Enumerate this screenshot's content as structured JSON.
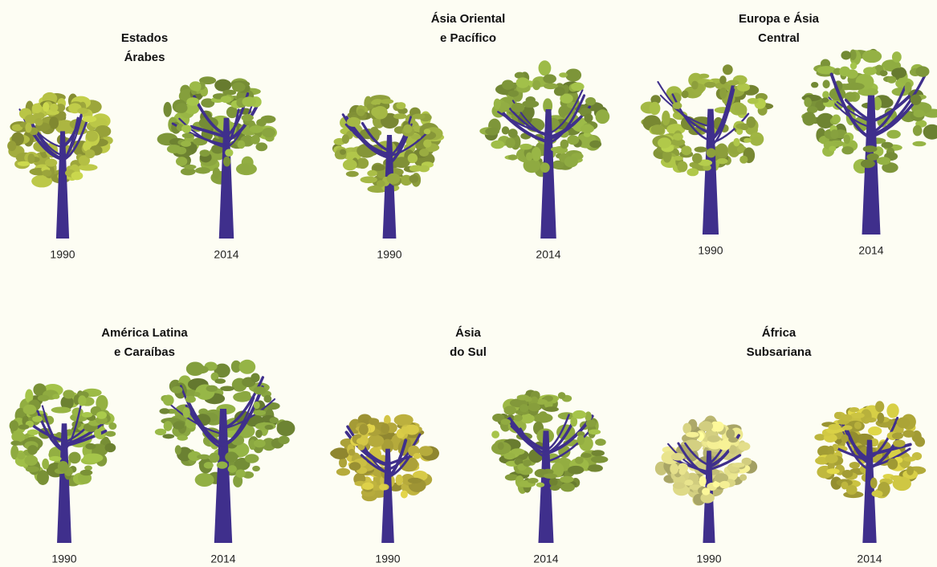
{
  "panels": [
    {
      "title": [
        "Estados",
        "Árabes"
      ],
      "trees": [
        {
          "year": "1990"
        },
        {
          "year": "2014"
        }
      ]
    },
    {
      "title": [
        "Ásia Oriental",
        "e Pacífico"
      ],
      "trees": [
        {
          "year": "1990"
        },
        {
          "year": "2014"
        }
      ]
    },
    {
      "title": [
        "Europa e Ásia",
        "Central"
      ],
      "trees": [
        {
          "year": "1990"
        },
        {
          "year": "2014"
        }
      ]
    },
    {
      "title": [
        "América Latina",
        "e Caraíbas"
      ],
      "trees": [
        {
          "year": "1990"
        },
        {
          "year": "2014"
        }
      ]
    },
    {
      "title": [
        "Ásia",
        "do Sul"
      ],
      "trees": [
        {
          "year": "1990"
        },
        {
          "year": "2014"
        }
      ]
    },
    {
      "title": [
        "África",
        "Subsariana"
      ],
      "trees": [
        {
          "year": "1990"
        },
        {
          "year": "2014"
        }
      ]
    }
  ]
}
